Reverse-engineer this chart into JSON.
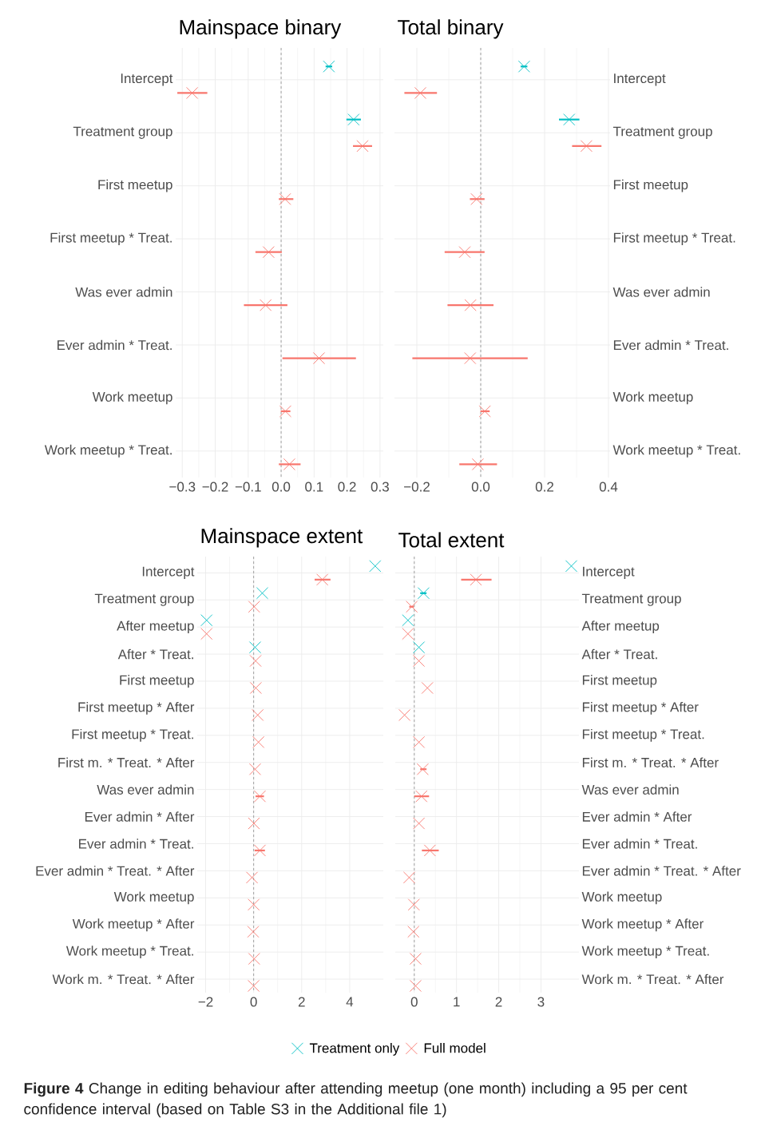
{
  "chart_data": [
    {
      "type": "scatter",
      "orientation": "horizontal",
      "title": "Mainspace binary",
      "categories": [
        "Intercept",
        "Treatment group",
        "First meetup",
        "First meetup * Treat.",
        "Was ever admin",
        "Ever admin * Treat.",
        "Work meetup",
        "Work meetup * Treat."
      ],
      "xlim": [
        -0.32,
        0.31
      ],
      "xticks": [
        {
          "value": -0.3,
          "label": "−0.3"
        },
        {
          "value": -0.2,
          "label": "−0.2"
        },
        {
          "value": -0.1,
          "label": "−0.1"
        },
        {
          "value": 0,
          "label": "0.0"
        },
        {
          "value": 0.1,
          "label": "0.1"
        },
        {
          "value": 0.2,
          "label": "0.2"
        },
        {
          "value": 0.3,
          "label": "0.3"
        }
      ],
      "grid": true,
      "marker": "cross",
      "ref_lines": [
        {
          "axis": "x",
          "value": 0,
          "color": "#8c8c8c",
          "line_style": "dashed"
        }
      ],
      "series": [
        {
          "color": "#00bfc4",
          "values": [
            0.145,
            0.22,
            null,
            null,
            null,
            null,
            null,
            null
          ],
          "errors": [
            [
              0.135,
              0.155
            ],
            [
              0.198,
              0.242
            ],
            null,
            null,
            null,
            null,
            null,
            null
          ]
        },
        {
          "color": "#f8766d",
          "values": [
            -0.27,
            0.247,
            0.012,
            -0.038,
            -0.047,
            0.115,
            0.013,
            0.025
          ],
          "errors": [
            [
              -0.315,
              -0.224
            ],
            [
              0.218,
              0.276
            ],
            [
              -0.007,
              0.037
            ],
            [
              -0.078,
              0.002
            ],
            [
              -0.113,
              0.019
            ],
            [
              0.004,
              0.227
            ],
            [
              -0.001,
              0.028
            ],
            [
              -0.007,
              0.059
            ]
          ]
        }
      ]
    },
    {
      "type": "scatter",
      "orientation": "horizontal",
      "title": "Total binary",
      "categories": [
        "Intercept",
        "Treatment group",
        "First meetup",
        "First meetup * Treat.",
        "Was ever admin",
        "Ever admin * Treat.",
        "Work meetup",
        "Work meetup * Treat."
      ],
      "xlim": [
        -0.27,
        0.405
      ],
      "xticks": [
        {
          "value": -0.2,
          "label": "−0.2"
        },
        {
          "value": 0,
          "label": "0.0"
        },
        {
          "value": 0.2,
          "label": "0.2"
        },
        {
          "value": 0.4,
          "label": "0.4"
        }
      ],
      "grid": true,
      "marker": "cross",
      "ref_lines": [
        {
          "axis": "x",
          "value": 0,
          "color": "#8c8c8c",
          "line_style": "dashed"
        }
      ],
      "series": [
        {
          "color": "#00bfc4",
          "values": [
            0.136,
            0.277,
            null,
            null,
            null,
            null,
            null,
            null
          ],
          "errors": [
            [
              0.125,
              0.146
            ],
            [
              0.245,
              0.309
            ],
            null,
            null,
            null,
            null,
            null,
            null
          ]
        },
        {
          "color": "#f8766d",
          "values": [
            -0.189,
            0.331,
            -0.013,
            -0.05,
            -0.032,
            -0.033,
            0.013,
            -0.009
          ],
          "errors": [
            [
              -0.239,
              -0.137
            ],
            [
              0.286,
              0.378
            ],
            [
              -0.034,
              0.012
            ],
            [
              -0.113,
              0.012
            ],
            [
              -0.104,
              0.04
            ],
            [
              -0.214,
              0.147
            ],
            [
              -0.001,
              0.028
            ],
            [
              -0.067,
              0.051
            ]
          ]
        }
      ]
    },
    {
      "type": "scatter",
      "orientation": "horizontal",
      "title": "Mainspace extent",
      "categories": [
        "Intercept",
        "Treatment group",
        "After meetup",
        "After * Treat.",
        "First meetup",
        "First meetup * After",
        "First meetup * Treat.",
        "First m. * Treat. * After",
        "Was ever admin",
        "Ever admin * After",
        "Ever admin * Treat.",
        "Ever admin * Treat. * After",
        "Work meetup",
        "Work meetup * After",
        "Work meetup * Treat.",
        "Work m. * Treat. * After"
      ],
      "xlim": [
        -2.35,
        5.4
      ],
      "xticks": [
        {
          "value": -2,
          "label": "−2"
        },
        0,
        2,
        4
      ],
      "grid": true,
      "marker": "cross",
      "ref_lines": [
        {
          "axis": "x",
          "value": 0,
          "color": "#8c8c8c",
          "line_style": "dashed"
        }
      ],
      "series": [
        {
          "color": "#00bfc4",
          "values": [
            5.06,
            0.36,
            -1.96,
            0.06,
            null,
            null,
            null,
            null,
            null,
            null,
            null,
            null,
            null,
            null,
            null,
            null
          ]
        },
        {
          "color": "#f8766d",
          "values": [
            2.86,
            0.02,
            -1.96,
            0.08,
            0.09,
            0.17,
            0.2,
            0.06,
            0.26,
            0.01,
            0.26,
            -0.07,
            0,
            -0.02,
            0.02,
            0
          ],
          "errors": [
            [
              2.54,
              3.2
            ],
            null,
            null,
            null,
            null,
            null,
            null,
            null,
            [
              0.08,
              0.43
            ],
            null,
            [
              0.04,
              0.47
            ],
            null,
            null,
            null,
            null,
            null
          ]
        }
      ]
    },
    {
      "type": "scatter",
      "orientation": "horizontal",
      "title": "Total extent",
      "categories": [
        "Intercept",
        "Treatment group",
        "After meetup",
        "After * Treat.",
        "First meetup",
        "First meetup * After",
        "First meetup * Treat.",
        "First m. * Treat. * After",
        "Was ever admin",
        "Ever admin * After",
        "Ever admin * Treat.",
        "Ever admin * Treat. * After",
        "Work meetup",
        "Work meetup * After",
        "Work meetup * Treat.",
        "Work m. * Treat. * After"
      ],
      "xlim": [
        -0.45,
        3.9
      ],
      "xticks": [
        0,
        1,
        2,
        3
      ],
      "grid": true,
      "marker": "cross",
      "legend": "bottom",
      "ref_lines": [
        {
          "axis": "x",
          "value": 0,
          "color": "#8c8c8c",
          "line_style": "dashed"
        }
      ],
      "annotations": [
        "**Figure 4** Change in editing behaviour after attending meetup (one month) including a 95 per cent confidence interval (based on Table S3 in the Additional file 1)"
      ],
      "series": [
        {
          "name": "Treatment only",
          "color": "#00bfc4",
          "values": [
            3.72,
            0.22,
            -0.15,
            0.11,
            null,
            null,
            null,
            null,
            null,
            null,
            null,
            null,
            null,
            null,
            null,
            null
          ],
          "errors": [
            null,
            [
              0.14,
              0.29
            ],
            null,
            null,
            null,
            null,
            null,
            null,
            null,
            null,
            null,
            null,
            null,
            null,
            null,
            null
          ]
        },
        {
          "name": "Full model",
          "color": "#f8766d",
          "values": [
            1.46,
            -0.06,
            -0.15,
            0.11,
            0.31,
            -0.23,
            0.11,
            0.2,
            0.17,
            0.11,
            0.37,
            -0.12,
            -0.01,
            -0.02,
            0.03,
            0.03
          ],
          "errors": [
            [
              1.11,
              1.83
            ],
            [
              -0.12,
              -0.01
            ],
            null,
            null,
            null,
            null,
            null,
            [
              0.14,
              0.29
            ],
            [
              0.0,
              0.35
            ],
            null,
            [
              0.18,
              0.58
            ],
            null,
            null,
            null,
            null,
            null
          ]
        }
      ]
    }
  ]
}
